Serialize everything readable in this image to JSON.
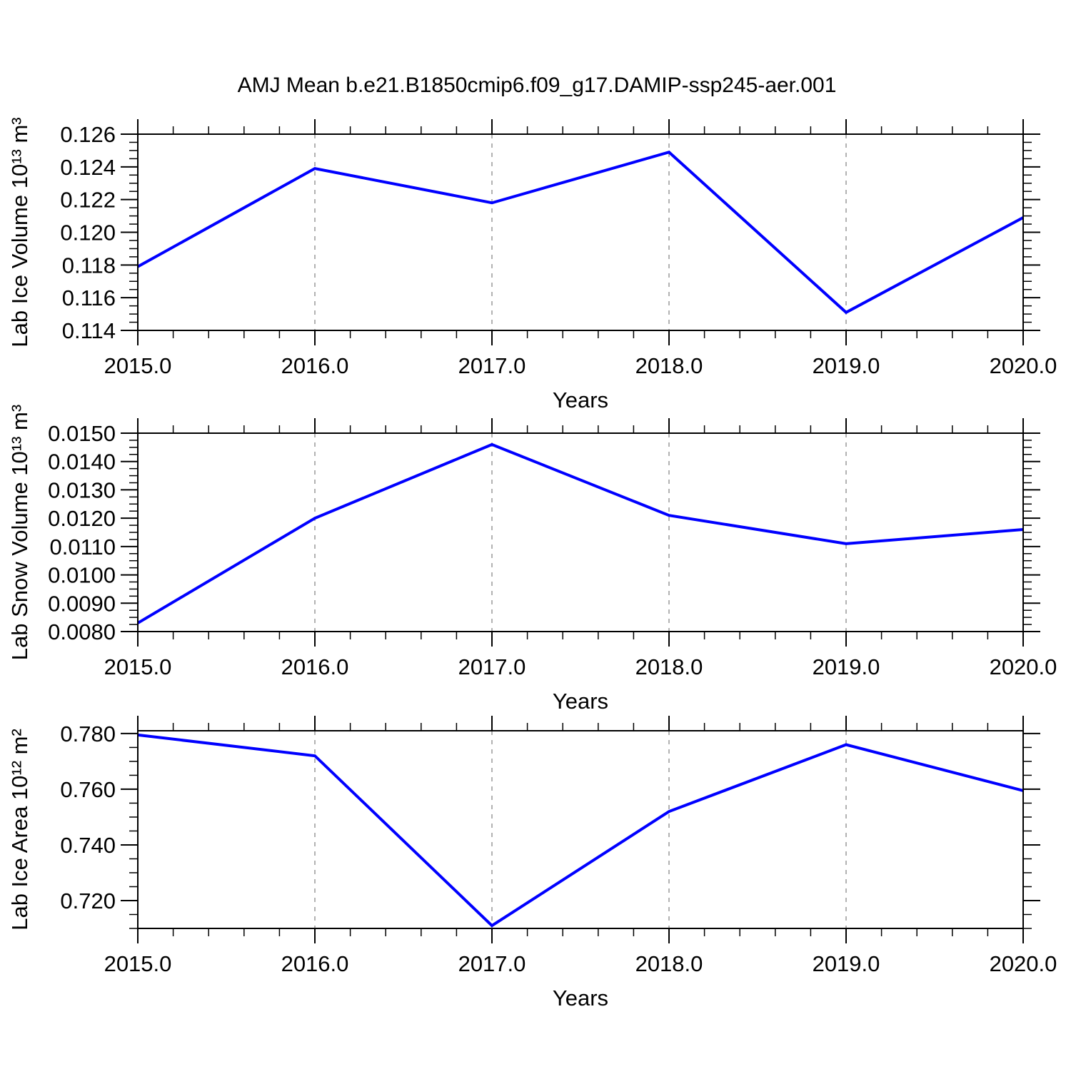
{
  "title": "AMJ Mean b.e21.B1850cmip6.f09_g17.DAMIP-ssp245-aer.001",
  "style": {
    "line_color": "#0000ff",
    "grid_color": "#999999",
    "axis_color": "#000000",
    "background": "#ffffff"
  },
  "chart_data": [
    {
      "type": "line",
      "series_name": "Lab Ice Volume",
      "x": [
        2015,
        2016,
        2017,
        2018,
        2019,
        2020
      ],
      "values": [
        0.1179,
        0.1239,
        0.1218,
        0.1249,
        0.1151,
        0.1209
      ],
      "xlabel": "Years",
      "ylabel": "Lab Ice Volume 10¹³ m³",
      "xlim": [
        2015,
        2020
      ],
      "ylim": [
        0.114,
        0.126
      ],
      "xticks": [
        2015,
        2016,
        2017,
        2018,
        2019,
        2020
      ],
      "xtick_labels": [
        "2015.0",
        "2016.0",
        "2017.0",
        "2018.0",
        "2019.0",
        "2020.0"
      ],
      "xminor_step": 0.2,
      "yticks": [
        0.114,
        0.116,
        0.118,
        0.12,
        0.122,
        0.124,
        0.126
      ],
      "ytick_labels": [
        "0.114",
        "0.116",
        "0.118",
        "0.120",
        "0.122",
        "0.124",
        "0.126"
      ],
      "yminor_step": 0.0005,
      "grid_x": [
        2016,
        2017,
        2018,
        2019
      ],
      "grid_style": "dashed",
      "legend": "none"
    },
    {
      "type": "line",
      "series_name": "Lab Snow Volume",
      "x": [
        2015,
        2016,
        2017,
        2018,
        2019,
        2020
      ],
      "values": [
        0.0083,
        0.012,
        0.0146,
        0.0121,
        0.0111,
        0.0116
      ],
      "xlabel": "Years",
      "ylabel": "Lab Snow Volume 10¹³ m³",
      "xlim": [
        2015,
        2020
      ],
      "ylim": [
        0.008,
        0.015
      ],
      "xticks": [
        2015,
        2016,
        2017,
        2018,
        2019,
        2020
      ],
      "xtick_labels": [
        "2015.0",
        "2016.0",
        "2017.0",
        "2018.0",
        "2019.0",
        "2020.0"
      ],
      "xminor_step": 0.2,
      "yticks": [
        0.008,
        0.009,
        0.01,
        0.011,
        0.012,
        0.013,
        0.014,
        0.015
      ],
      "ytick_labels": [
        "0.0080",
        "0.0090",
        "0.0100",
        "0.0110",
        "0.0120",
        "0.0130",
        "0.0140",
        "0.0150"
      ],
      "yminor_step": 0.00025,
      "grid_x": [
        2016,
        2017,
        2018,
        2019
      ],
      "grid_style": "dashed",
      "legend": "none"
    },
    {
      "type": "line",
      "series_name": "Lab Ice Area",
      "x": [
        2015,
        2016,
        2017,
        2018,
        2019,
        2020
      ],
      "values": [
        0.7795,
        0.772,
        0.711,
        0.752,
        0.776,
        0.7595
      ],
      "xlabel": "Years",
      "ylabel": "Lab Ice Area 10¹² m²",
      "xlim": [
        2015,
        2020
      ],
      "ylim": [
        0.71,
        0.781
      ],
      "xticks": [
        2015,
        2016,
        2017,
        2018,
        2019,
        2020
      ],
      "xtick_labels": [
        "2015.0",
        "2016.0",
        "2017.0",
        "2018.0",
        "2019.0",
        "2020.0"
      ],
      "xminor_step": 0.2,
      "yticks": [
        0.72,
        0.74,
        0.76,
        0.78
      ],
      "ytick_labels": [
        "0.720",
        "0.740",
        "0.760",
        "0.780"
      ],
      "yminor_step": 0.005,
      "grid_x": [
        2016,
        2017,
        2018,
        2019
      ],
      "grid_style": "dashed",
      "legend": "none"
    }
  ]
}
